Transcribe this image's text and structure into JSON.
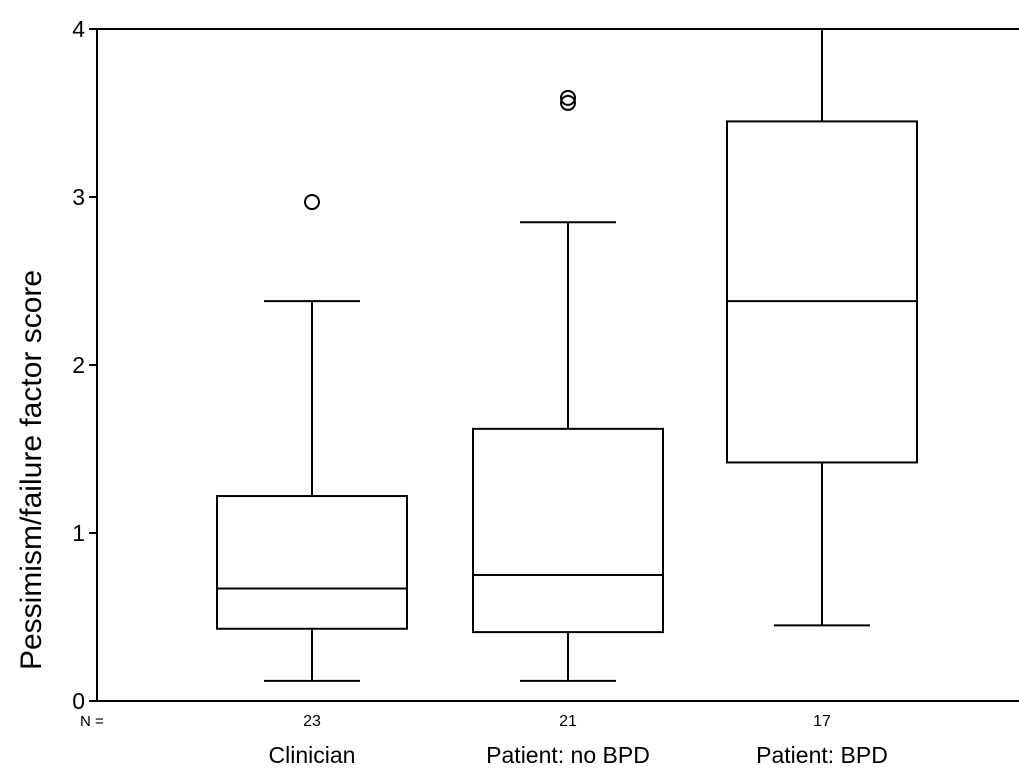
{
  "chart_data": {
    "type": "box",
    "title": "",
    "ylabel": "Pessimism/failure factor score",
    "xlabel": "",
    "ylim": [
      0,
      4
    ],
    "yticks": [
      0,
      1,
      2,
      3,
      4
    ],
    "n_label": "N =",
    "grid": false,
    "categories": [
      "Clinician",
      "Patient: no BPD",
      "Patient: BPD"
    ],
    "n_values": [
      "23",
      "21",
      "17"
    ],
    "boxes": [
      {
        "category": "Clinician",
        "n": 23,
        "min": 0.12,
        "q1": 0.43,
        "median": 0.67,
        "q3": 1.22,
        "max": 2.38,
        "outliers": [
          2.97
        ]
      },
      {
        "category": "Patient: no BPD",
        "n": 21,
        "min": 0.12,
        "q1": 0.41,
        "median": 0.75,
        "q3": 1.62,
        "max": 2.85,
        "outliers": [
          3.56,
          3.59
        ]
      },
      {
        "category": "Patient: BPD",
        "n": 17,
        "min": 0.45,
        "q1": 1.42,
        "median": 2.38,
        "q3": 3.45,
        "max": 4.0,
        "outliers": []
      }
    ]
  }
}
